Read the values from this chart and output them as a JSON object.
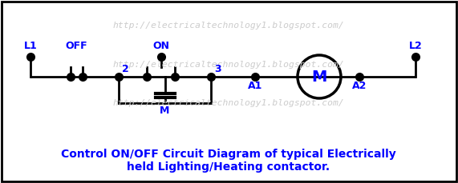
{
  "background_color": "#ffffff",
  "border_color": "#000000",
  "line_color": "#000000",
  "blue_color": "#0000ff",
  "watermark_color": "#cccccc",
  "watermark_text": "http://electricaltechnology1.blogspot.com/",
  "title_line1": "Control ON/OFF Circuit Diagram of typical Electrically",
  "title_line2": "held Lighting/Heating contactor.",
  "label_L1": "L1",
  "label_L2": "L2",
  "label_OFF": "OFF",
  "label_ON": "ON",
  "label_2": "2",
  "label_3": "3",
  "label_A1": "A1",
  "label_A2": "A2",
  "label_M_coil": "M",
  "label_M_motor": "M",
  "ym": 133,
  "yt": 158,
  "yb": 100,
  "xL1": 38,
  "xOFF_a": 88,
  "xOFF_b": 103,
  "xN2": 148,
  "xON_l": 183,
  "xON_r": 218,
  "xN3": 263,
  "xA1": 318,
  "xMcx": 398,
  "xA2": 448,
  "xL2": 518,
  "motor_r": 27,
  "dot_ms": 7,
  "lw": 2.0
}
